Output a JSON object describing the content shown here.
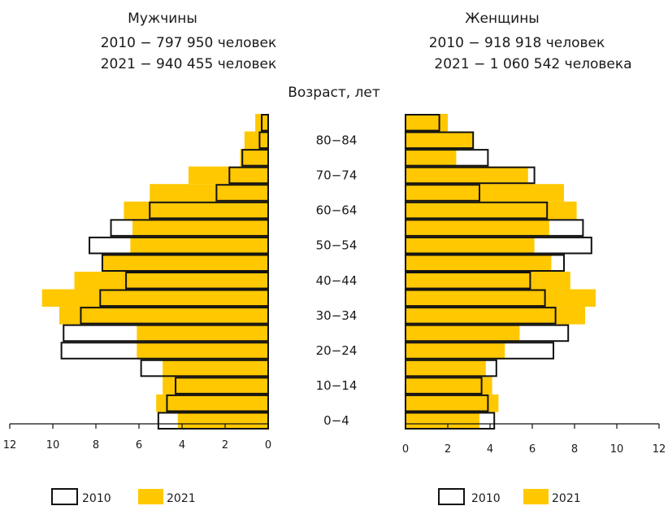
{
  "chart_data": {
    "type": "bar",
    "y_axis_title": "Возраст, лет",
    "age_groups": [
      "0–4",
      "5–9",
      "10–14",
      "15–19",
      "20–24",
      "25–29",
      "30–34",
      "35–39",
      "40–44",
      "45–49",
      "50–54",
      "55–59",
      "60–64",
      "65–69",
      "70–74",
      "75–79",
      "80–84",
      "85+"
    ],
    "age_tick_labels": [
      "0−4",
      "10−14",
      "20−24",
      "30−34",
      "40−44",
      "50−54",
      "60−64",
      "70−74",
      "80−84"
    ],
    "x_ticks": [
      0,
      2,
      4,
      6,
      8,
      10,
      12
    ],
    "xlim": [
      0,
      12
    ],
    "legend": [
      "2010",
      "2021"
    ],
    "colors": {
      "2010": "#ffffff",
      "2021": "#ffc800",
      "outline": "#111111"
    },
    "men": {
      "header": "Мужчины",
      "totals": [
        "2010 − 797 950 человек",
        "2021 − 940 455 человек"
      ],
      "series": [
        {
          "name": "2010",
          "values": [
            5.1,
            4.7,
            4.3,
            5.9,
            9.6,
            9.5,
            8.7,
            7.8,
            6.6,
            7.7,
            8.3,
            7.3,
            5.5,
            2.4,
            1.8,
            1.2,
            0.4,
            0.3
          ]
        },
        {
          "name": "2021",
          "values": [
            4.2,
            5.2,
            4.9,
            4.9,
            6.1,
            6.1,
            9.7,
            10.5,
            9.0,
            7.7,
            6.4,
            6.3,
            6.7,
            5.5,
            3.7,
            1.3,
            1.1,
            0.6
          ]
        }
      ]
    },
    "women": {
      "header": "Женщины",
      "totals": [
        "2010 − 918 918 человек",
        "2021 − 1 060 542 человека"
      ],
      "series": [
        {
          "name": "2010",
          "values": [
            4.2,
            3.9,
            3.6,
            4.3,
            7.0,
            7.7,
            7.1,
            6.6,
            5.9,
            7.5,
            8.8,
            8.4,
            6.7,
            3.5,
            6.1,
            3.9,
            3.2,
            1.6
          ]
        },
        {
          "name": "2021",
          "values": [
            3.5,
            4.4,
            4.1,
            3.8,
            4.7,
            5.4,
            8.5,
            9.0,
            7.8,
            6.9,
            6.1,
            6.8,
            8.1,
            7.5,
            5.8,
            2.4,
            3.2,
            2.0
          ]
        }
      ]
    }
  }
}
